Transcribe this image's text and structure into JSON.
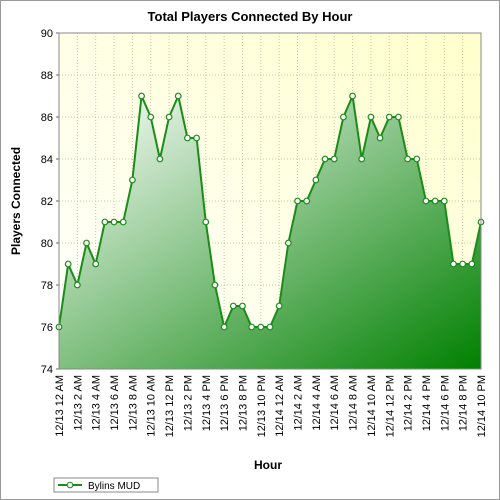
{
  "chart_data": {
    "type": "area-line",
    "title": "Total Players Connected By Hour",
    "x_label": "Hour",
    "y_label": "Players Connected",
    "categories": [
      "12/13 12 AM",
      null,
      "12/13 2 AM",
      null,
      "12/13 4 AM",
      null,
      "12/13 6 AM",
      null,
      "12/13 8 AM",
      null,
      "12/13 10 AM",
      null,
      "12/13 12 PM",
      null,
      "12/13 2 PM",
      null,
      "12/13 4 PM",
      null,
      "12/13 6 PM",
      null,
      "12/13 8 PM",
      null,
      "12/13 10 PM",
      null,
      "12/14 12 AM",
      null,
      "12/14 2 AM",
      null,
      "12/14 4 AM",
      null,
      "12/14 6 AM",
      null,
      "12/14 8 AM",
      null,
      "12/14 10 AM",
      null,
      "12/14 12 PM",
      null,
      "12/14 2 PM",
      null,
      "12/14 4 PM",
      null,
      "12/14 6 PM",
      null,
      "12/14 8 PM",
      null,
      "12/14 10 PM"
    ],
    "series": [
      {
        "name": "Bylins MUD",
        "color": "#1a8c1a",
        "values": [
          76,
          79,
          78,
          80,
          79,
          81,
          81,
          81,
          83,
          87,
          86,
          84,
          86,
          87,
          85,
          85,
          81,
          78,
          76,
          77,
          77,
          76,
          76,
          76,
          77,
          80,
          82,
          82,
          83,
          84,
          84,
          86,
          87,
          84,
          86,
          85,
          86,
          86,
          84,
          84,
          82,
          82,
          82,
          79,
          79,
          79,
          81
        ]
      }
    ],
    "ylim": [
      74,
      90
    ],
    "yticks": [
      74,
      76,
      78,
      80,
      82,
      84,
      86,
      88,
      90
    ],
    "grid": true
  }
}
